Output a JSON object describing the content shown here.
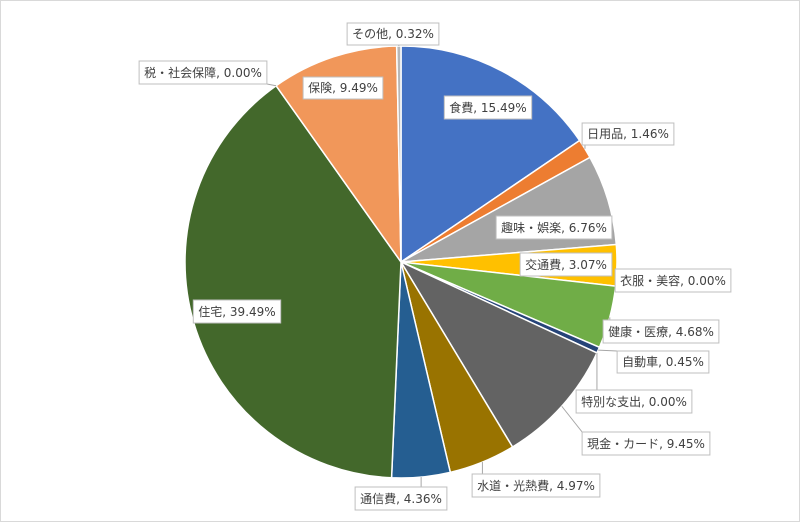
{
  "chart_data": {
    "type": "pie",
    "title": "",
    "start_angle_deg": 0,
    "direction": "clockwise",
    "slices": [
      {
        "label": "食費, 15.49%",
        "category": "食費",
        "value": 15.49,
        "color": "#4472C4"
      },
      {
        "label": "日用品, 1.46%",
        "category": "日用品",
        "value": 1.46,
        "color": "#ED7D31"
      },
      {
        "label": "趣味・娯楽, 6.76%",
        "category": "趣味・娯楽",
        "value": 6.76,
        "color": "#A5A5A5"
      },
      {
        "label": "交通費, 3.07%",
        "category": "交通費",
        "value": 3.07,
        "color": "#FFC000"
      },
      {
        "label": "衣服・美容, 0.00%",
        "category": "衣服・美容",
        "value": 0.0,
        "color": "#5B9BD5"
      },
      {
        "label": "健康・医療, 4.68%",
        "category": "健康・医療",
        "value": 4.68,
        "color": "#70AD47"
      },
      {
        "label": "自動車, 0.45%",
        "category": "自動車",
        "value": 0.45,
        "color": "#264478"
      },
      {
        "label": "特別な支出, 0.00%",
        "category": "特別な支出",
        "value": 0.0,
        "color": "#9E480E"
      },
      {
        "label": "現金・カード, 9.45%",
        "category": "現金・カード",
        "value": 9.45,
        "color": "#636363"
      },
      {
        "label": "水道・光熱費, 4.97%",
        "category": "水道・光熱費",
        "value": 4.97,
        "color": "#997300"
      },
      {
        "label": "通信費, 4.36%",
        "category": "通信費",
        "value": 4.36,
        "color": "#255E91"
      },
      {
        "label": "住宅, 39.49%",
        "category": "住宅",
        "value": 39.49,
        "color": "#43682B"
      },
      {
        "label": "税・社会保障, 0.00%",
        "category": "税・社会保障",
        "value": 0.0,
        "color": "#698ED0"
      },
      {
        "label": "保険, 9.49%",
        "category": "保険",
        "value": 9.49,
        "color": "#F1975A"
      },
      {
        "label": "その他, 0.32%",
        "category": "その他",
        "value": 0.32,
        "color": "#B7B7B7"
      }
    ]
  }
}
